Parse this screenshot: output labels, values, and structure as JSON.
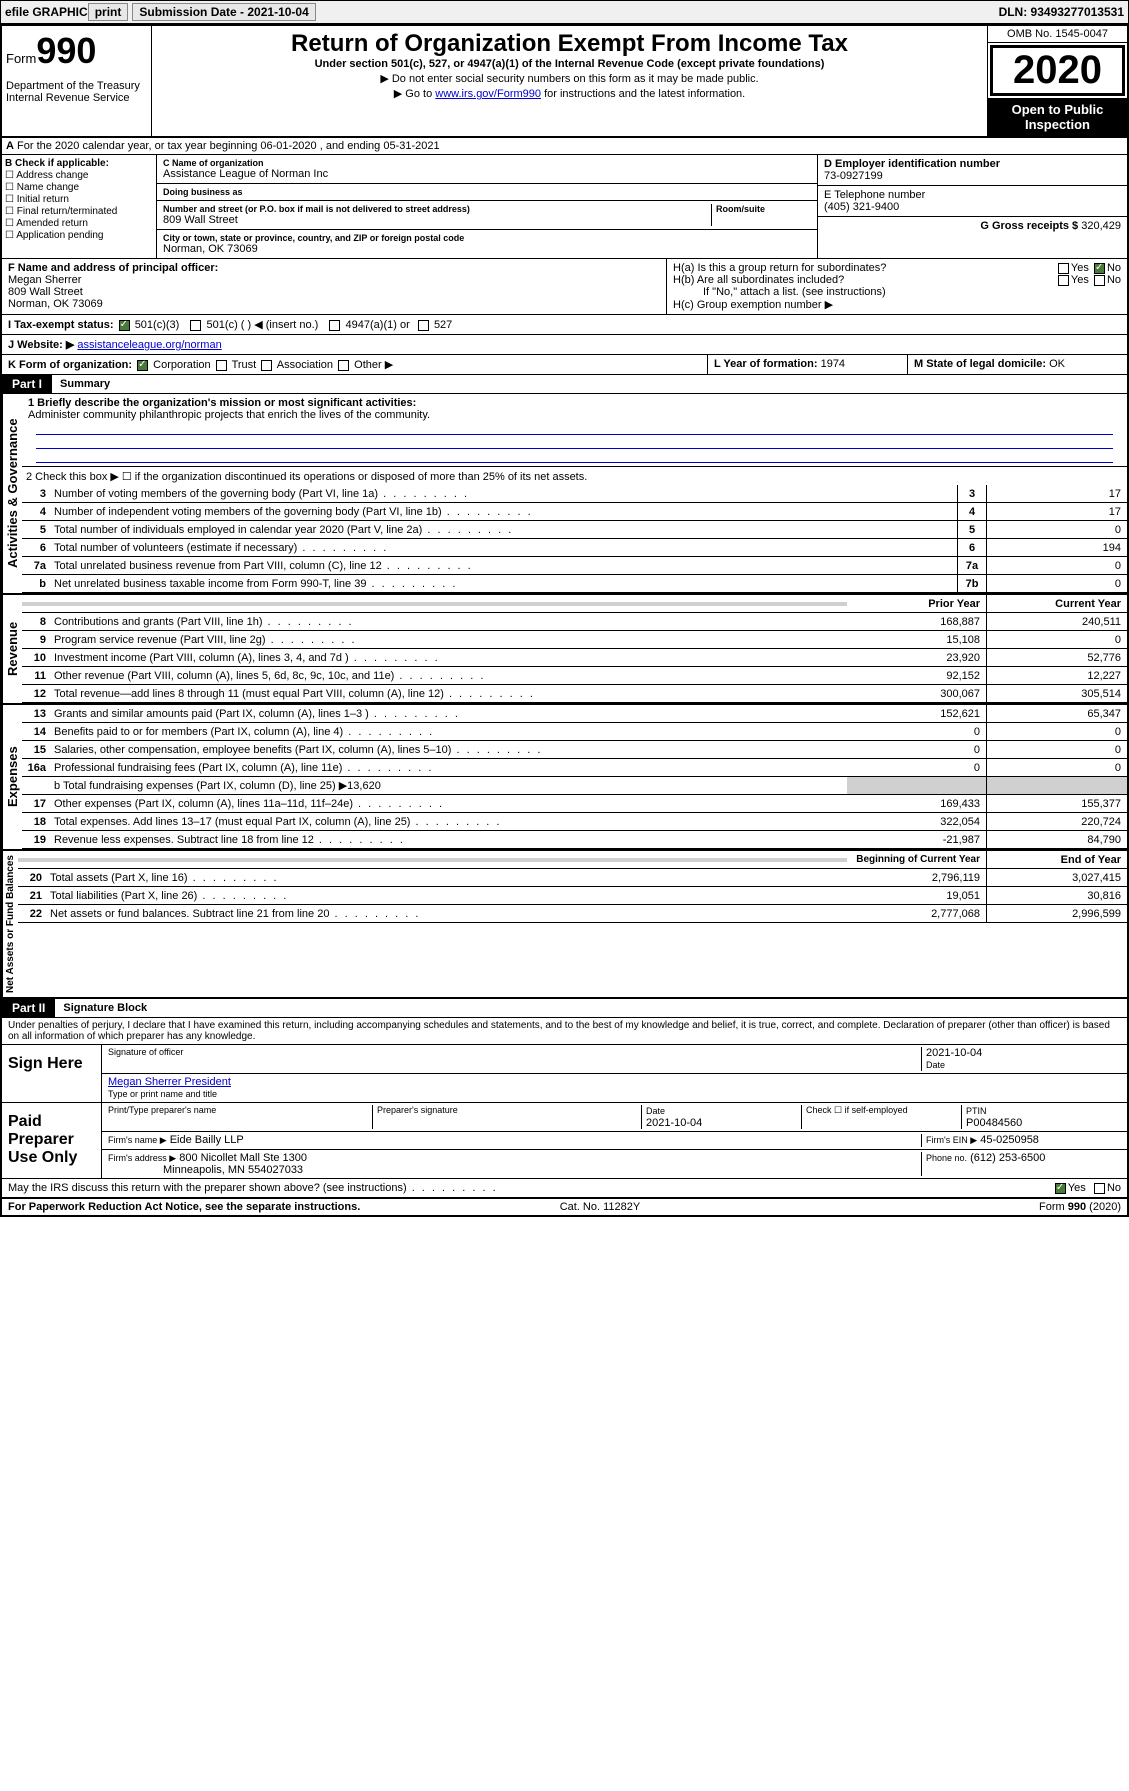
{
  "topbar": {
    "efile": "efile GRAPHIC",
    "print": "print",
    "submission": "Submission Date - 2021-10-04",
    "dln": "DLN: 93493277013531"
  },
  "header": {
    "form_prefix": "Form",
    "form_no": "990",
    "dept": "Department of the Treasury Internal Revenue Service",
    "title": "Return of Organization Exempt From Income Tax",
    "subtitle": "Under section 501(c), 527, or 4947(a)(1) of the Internal Revenue Code (except private foundations)",
    "note1": "▶ Do not enter social security numbers on this form as it may be made public.",
    "note2_pre": "▶ Go to ",
    "note2_link": "www.irs.gov/Form990",
    "note2_post": " for instructions and the latest information.",
    "omb": "OMB No. 1545-0047",
    "year": "2020",
    "open": "Open to Public Inspection"
  },
  "row_a": "For the 2020 calendar year, or tax year beginning 06-01-2020   , and ending 05-31-2021",
  "section_b": {
    "label": "B Check if applicable:",
    "items": [
      "Address change",
      "Name change",
      "Initial return",
      "Final return/terminated",
      "Amended return",
      "Application pending"
    ]
  },
  "section_c": {
    "name_label": "C Name of organization",
    "name": "Assistance League of Norman Inc",
    "dba_label": "Doing business as",
    "dba": "",
    "addr_label": "Number and street (or P.O. box if mail is not delivered to street address)",
    "room_label": "Room/suite",
    "addr": "809 Wall Street",
    "city_label": "City or town, state or province, country, and ZIP or foreign postal code",
    "city": "Norman, OK  73069"
  },
  "section_d": {
    "label": "D Employer identification number",
    "val": "73-0927199"
  },
  "section_e": {
    "label": "E Telephone number",
    "val": "(405) 321-9400"
  },
  "section_g": {
    "label": "G Gross receipts $",
    "val": "320,429"
  },
  "section_f": {
    "label": "F  Name and address of principal officer:",
    "name": "Megan Sherrer",
    "addr1": "809 Wall Street",
    "addr2": "Norman, OK  73069"
  },
  "section_h": {
    "ha": "H(a)  Is this a group return for subordinates?",
    "hb": "H(b)  Are all subordinates included?",
    "hb_note": "If \"No,\" attach a list. (see instructions)",
    "hc": "H(c)  Group exemption number ▶",
    "yes": "Yes",
    "no": "No"
  },
  "section_i": {
    "label": "I    Tax-exempt status:",
    "opts": [
      "501(c)(3)",
      "501(c) (  ) ◀ (insert no.)",
      "4947(a)(1) or",
      "527"
    ]
  },
  "section_j": {
    "label": "J    Website: ▶",
    "val": "assistanceleague.org/norman"
  },
  "section_k": {
    "label": "K Form of organization:",
    "opts": [
      "Corporation",
      "Trust",
      "Association",
      "Other ▶"
    ]
  },
  "section_l": {
    "label": "L Year of formation:",
    "val": "1974"
  },
  "section_m": {
    "label": "M State of legal domicile:",
    "val": "OK"
  },
  "part1": {
    "header": "Part I",
    "title": "Summary",
    "line1_label": "1   Briefly describe the organization's mission or most significant activities:",
    "line1_text": "Administer community philanthropic projects that enrich the lives of the community.",
    "line2": "2    Check this box ▶ ☐  if the organization discontinued its operations or disposed of more than 25% of its net assets.",
    "governance_label": "Activities & Governance",
    "revenue_label": "Revenue",
    "expenses_label": "Expenses",
    "netassets_label": "Net Assets or Fund Balances",
    "lines_gov": [
      {
        "n": "3",
        "t": "Number of voting members of the governing body (Part VI, line 1a)",
        "box": "3",
        "v": "17"
      },
      {
        "n": "4",
        "t": "Number of independent voting members of the governing body (Part VI, line 1b)",
        "box": "4",
        "v": "17"
      },
      {
        "n": "5",
        "t": "Total number of individuals employed in calendar year 2020 (Part V, line 2a)",
        "box": "5",
        "v": "0"
      },
      {
        "n": "6",
        "t": "Total number of volunteers (estimate if necessary)",
        "box": "6",
        "v": "194"
      },
      {
        "n": "7a",
        "t": "Total unrelated business revenue from Part VIII, column (C), line 12",
        "box": "7a",
        "v": "0"
      },
      {
        "n": "b",
        "t": "Net unrelated business taxable income from Form 990-T, line 39",
        "box": "7b",
        "v": "0"
      }
    ],
    "col_prior": "Prior Year",
    "col_current": "Current Year",
    "lines_rev": [
      {
        "n": "8",
        "t": "Contributions and grants (Part VIII, line 1h)",
        "p": "168,887",
        "c": "240,511"
      },
      {
        "n": "9",
        "t": "Program service revenue (Part VIII, line 2g)",
        "p": "15,108",
        "c": "0"
      },
      {
        "n": "10",
        "t": "Investment income (Part VIII, column (A), lines 3, 4, and 7d )",
        "p": "23,920",
        "c": "52,776"
      },
      {
        "n": "11",
        "t": "Other revenue (Part VIII, column (A), lines 5, 6d, 8c, 9c, 10c, and 11e)",
        "p": "92,152",
        "c": "12,227"
      },
      {
        "n": "12",
        "t": "Total revenue—add lines 8 through 11 (must equal Part VIII, column (A), line 12)",
        "p": "300,067",
        "c": "305,514"
      }
    ],
    "lines_exp": [
      {
        "n": "13",
        "t": "Grants and similar amounts paid (Part IX, column (A), lines 1–3 )",
        "p": "152,621",
        "c": "65,347"
      },
      {
        "n": "14",
        "t": "Benefits paid to or for members (Part IX, column (A), line 4)",
        "p": "0",
        "c": "0"
      },
      {
        "n": "15",
        "t": "Salaries, other compensation, employee benefits (Part IX, column (A), lines 5–10)",
        "p": "0",
        "c": "0"
      },
      {
        "n": "16a",
        "t": "Professional fundraising fees (Part IX, column (A), line 11e)",
        "p": "0",
        "c": "0"
      }
    ],
    "line16b": "b   Total fundraising expenses (Part IX, column (D), line 25) ▶13,620",
    "lines_exp2": [
      {
        "n": "17",
        "t": "Other expenses (Part IX, column (A), lines 11a–11d, 11f–24e)",
        "p": "169,433",
        "c": "155,377"
      },
      {
        "n": "18",
        "t": "Total expenses. Add lines 13–17 (must equal Part IX, column (A), line 25)",
        "p": "322,054",
        "c": "220,724"
      },
      {
        "n": "19",
        "t": "Revenue less expenses. Subtract line 18 from line 12",
        "p": "-21,987",
        "c": "84,790"
      }
    ],
    "col_begin": "Beginning of Current Year",
    "col_end": "End of Year",
    "lines_net": [
      {
        "n": "20",
        "t": "Total assets (Part X, line 16)",
        "p": "2,796,119",
        "c": "3,027,415"
      },
      {
        "n": "21",
        "t": "Total liabilities (Part X, line 26)",
        "p": "19,051",
        "c": "30,816"
      },
      {
        "n": "22",
        "t": "Net assets or fund balances. Subtract line 21 from line 20",
        "p": "2,777,068",
        "c": "2,996,599"
      }
    ]
  },
  "part2": {
    "header": "Part II",
    "title": "Signature Block",
    "perjury": "Under penalties of perjury, I declare that I have examined this return, including accompanying schedules and statements, and to the best of my knowledge and belief, it is true, correct, and complete. Declaration of preparer (other than officer) is based on all information of which preparer has any knowledge.",
    "sign_here": "Sign Here",
    "sig_officer": "Signature of officer",
    "sig_date": "2021-10-04",
    "date_label": "Date",
    "officer_name": "Megan Sherrer President",
    "type_name": "Type or print name and title",
    "paid_prep": "Paid Preparer Use Only",
    "prep_name_label": "Print/Type preparer's name",
    "prep_sig_label": "Preparer's signature",
    "prep_date": "2021-10-04",
    "check_self": "Check ☐ if self-employed",
    "ptin_label": "PTIN",
    "ptin": "P00484560",
    "firm_name_label": "Firm's name    ▶",
    "firm_name": "Eide Bailly LLP",
    "firm_ein_label": "Firm's EIN ▶",
    "firm_ein": "45-0250958",
    "firm_addr_label": "Firm's address ▶",
    "firm_addr1": "800 Nicollet Mall Ste 1300",
    "firm_addr2": "Minneapolis, MN  554027033",
    "phone_label": "Phone no.",
    "phone": "(612) 253-6500",
    "discuss": "May the IRS discuss this return with the preparer shown above? (see instructions)",
    "yes": "Yes",
    "no": "No"
  },
  "footer": {
    "left": "For Paperwork Reduction Act Notice, see the separate instructions.",
    "mid": "Cat. No. 11282Y",
    "right": "Form 990 (2020)"
  }
}
